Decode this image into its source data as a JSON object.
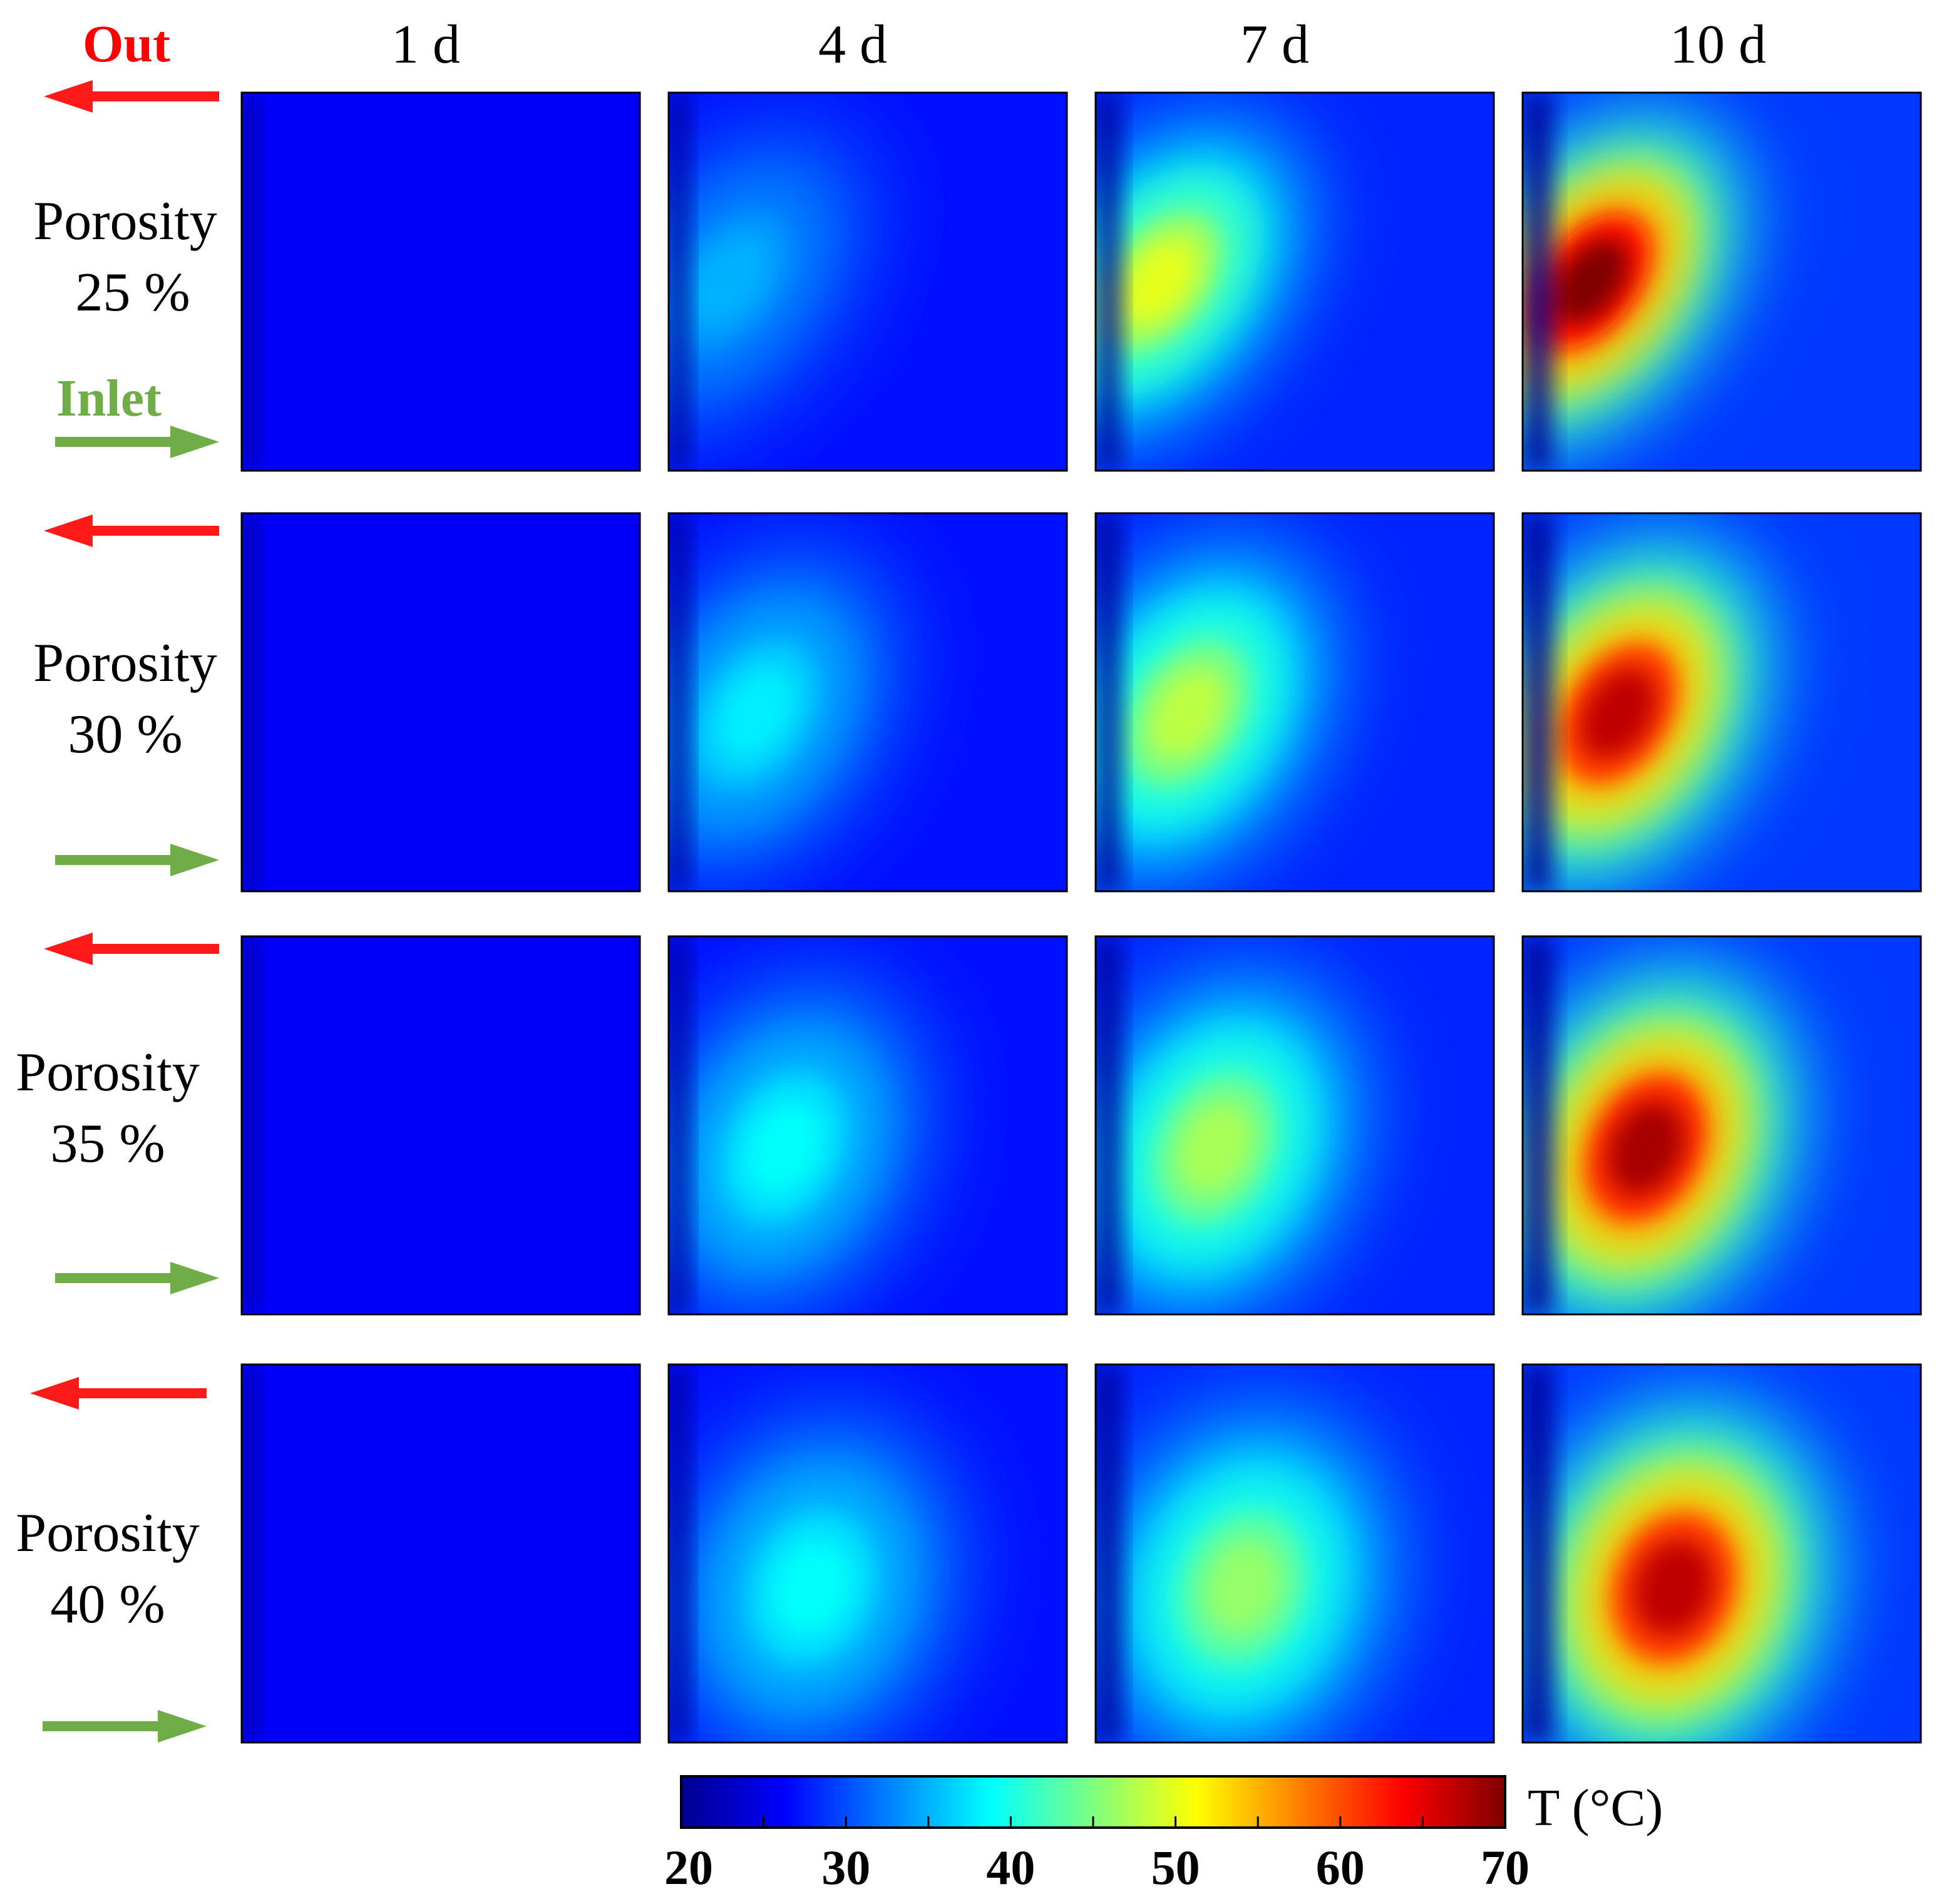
{
  "chart_data": {
    "type": "heatmap",
    "description_visible": false,
    "columns": [
      {
        "label": "1 d",
        "day": 1
      },
      {
        "label": "4 d",
        "day": 4
      },
      {
        "label": "7 d",
        "day": 7
      },
      {
        "label": "10 d",
        "day": 10
      }
    ],
    "rows": [
      {
        "label_line1": "Porosity",
        "label_line2": "25 %",
        "porosity": 25,
        "peak_T": [
          26,
          35,
          50,
          70
        ]
      },
      {
        "label_line1": "Porosity",
        "label_line2": "30 %",
        "porosity": 30,
        "peak_T": [
          26,
          38,
          48,
          67
        ]
      },
      {
        "label_line1": "Porosity",
        "label_line2": "35 %",
        "porosity": 35,
        "peak_T": [
          27,
          39,
          47,
          68
        ]
      },
      {
        "label_line1": "Porosity",
        "label_line2": "40 %",
        "porosity": 40,
        "peak_T": [
          27,
          39,
          46,
          67
        ]
      }
    ],
    "flow_labels": {
      "out": "Out",
      "inlet": "Inlet"
    },
    "colorbar": {
      "title": "T (°C)",
      "range": [
        20,
        70
      ],
      "tick_values": [
        20,
        30,
        40,
        50,
        60,
        70
      ],
      "tick_labels": [
        "20",
        "30",
        "40",
        "50",
        "60",
        "70"
      ],
      "colormap": "jet"
    },
    "colors": {
      "out_arrow": "#ff1a1a",
      "inlet_arrow": "#70ad47",
      "out_text": "#ff0000",
      "inlet_text": "#70ad47"
    }
  }
}
